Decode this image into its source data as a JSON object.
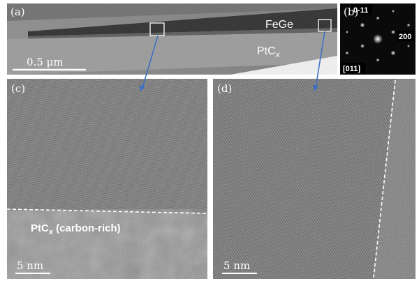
{
  "panels": [
    {
      "label": "(a)",
      "layer_top": "FeGe",
      "layer_bottom": {
        "text": "PtC",
        "subscript": "x"
      },
      "scale_bar": "0.5 μm"
    },
    {
      "label": "(b)",
      "spots": [
        "0-11",
        "200"
      ],
      "zone_axis": "[011]"
    },
    {
      "label": "(c)",
      "region": {
        "text": "PtC",
        "subscript": "x",
        "suffix": " (carbon-rich)"
      },
      "scale_bar": "5 nm"
    },
    {
      "label": "(d)",
      "scale_bar": "5 nm"
    }
  ]
}
